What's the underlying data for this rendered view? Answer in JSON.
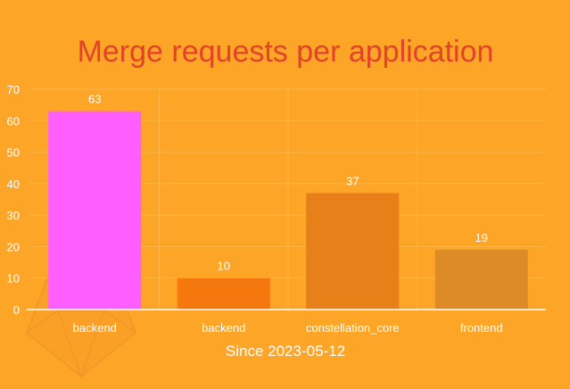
{
  "chart_data": {
    "type": "bar",
    "title": "Merge requests per application",
    "subtitle": "Since 2023-05-12",
    "categories": [
      "backend",
      "backend",
      "constellation_core",
      "frontend"
    ],
    "values": [
      63,
      10,
      37,
      19
    ],
    "bar_colors": [
      "#ff5eff",
      "#f5780e",
      "#e8801a",
      "#dc8b26"
    ],
    "ylim": [
      0,
      70
    ],
    "yticks": [
      0,
      10,
      20,
      30,
      40,
      50,
      60,
      70
    ],
    "grid": true,
    "legend": "none"
  },
  "logo": {
    "name": "gitlab-logo-icon"
  }
}
